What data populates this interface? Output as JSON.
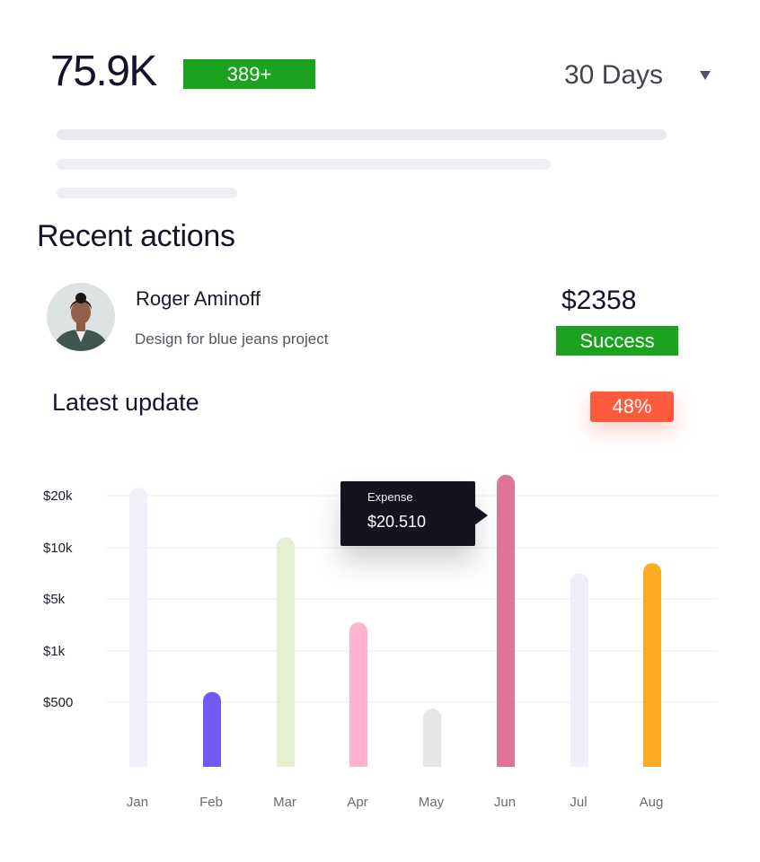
{
  "summary": {
    "total_value": "75.9K",
    "change_badge": "389+",
    "period": {
      "selected": "30 Days",
      "caret_icon": "caret-down-icon"
    }
  },
  "recent_actions": {
    "title": "Recent actions",
    "items": [
      {
        "name": "Roger Aminoff",
        "description": "Design for blue jeans project",
        "amount": "$2358",
        "status": "Success",
        "status_color": "#1ba21f"
      }
    ]
  },
  "latest_update": {
    "title": "Latest update",
    "percent_badge": "48%",
    "percent_color": "#ff5a3c"
  },
  "tooltip": {
    "label": "Expense",
    "value": "$20.510"
  },
  "chart_data": {
    "type": "bar",
    "title": "Latest update",
    "xlabel": "",
    "ylabel": "",
    "grid": true,
    "y_ticks": [
      "$20k",
      "$10k",
      "$5k",
      "$1k",
      "$500"
    ],
    "categories": [
      "Jan",
      "Feb",
      "Mar",
      "Apr",
      "May",
      "Jun",
      "Jul",
      "Aug"
    ],
    "values": [
      21500,
      600,
      12000,
      3200,
      450,
      24000,
      7500,
      8500
    ],
    "colors": [
      "#f0f0fb",
      "#7359f5",
      "#e5efd2",
      "#ffb3d1",
      "#e6e6e8",
      "#df7398",
      "#efeefb",
      "#fdab22"
    ],
    "highlight": "Jun"
  }
}
